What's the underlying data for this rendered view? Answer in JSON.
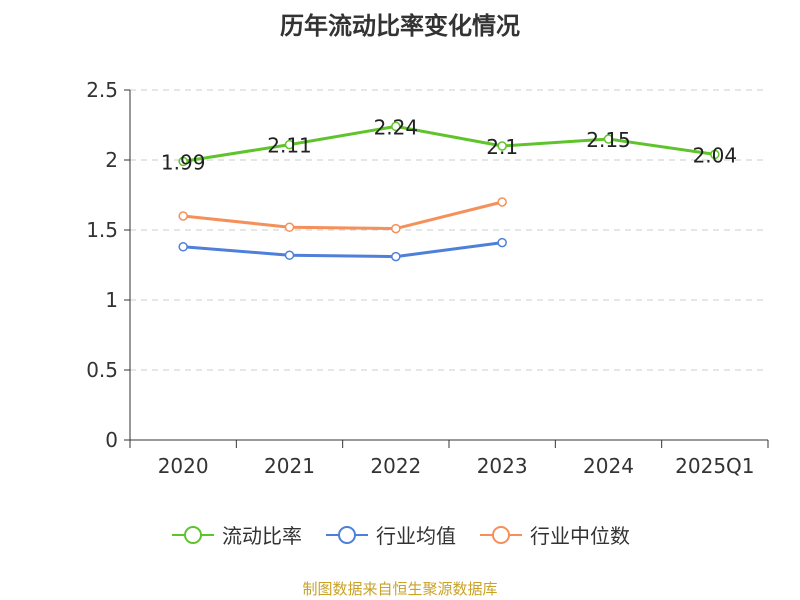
{
  "chart_data": {
    "type": "line",
    "title": "历年流动比率变化情况",
    "categories": [
      "2020",
      "2021",
      "2022",
      "2023",
      "2024",
      "2025Q1"
    ],
    "ylim": [
      0,
      2.5
    ],
    "yticks": [
      "0",
      "0.5",
      "1",
      "1.5",
      "2",
      "2.5"
    ],
    "grid": true,
    "legend_position": "bottom",
    "series": [
      {
        "name": "流动比率",
        "color": "#5fc42c",
        "values": [
          1.99,
          2.11,
          2.24,
          2.1,
          2.15,
          2.04
        ],
        "labels": [
          "1.99",
          "2.11",
          "2.24",
          "2.1",
          "2.15",
          "2.04"
        ]
      },
      {
        "name": "行业均值",
        "color": "#4e7fd9",
        "values": [
          1.38,
          1.32,
          1.31,
          1.41,
          null,
          null
        ]
      },
      {
        "name": "行业中位数",
        "color": "#f5905a",
        "values": [
          1.6,
          1.52,
          1.51,
          1.7,
          null,
          null
        ]
      }
    ]
  },
  "source": "制图数据来自恒生聚源数据库"
}
